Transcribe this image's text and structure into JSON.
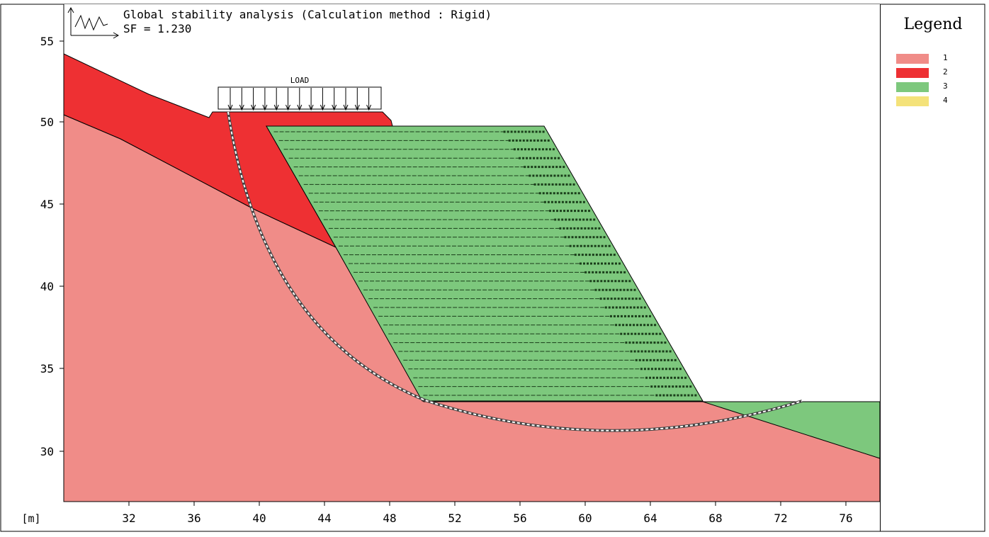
{
  "title": {
    "line1": "Global stability analysis (Calculation method : Rigid)",
    "line2": "SF = 1.230"
  },
  "load_label": "LOAD",
  "axis": {
    "unit_label": "[m]",
    "x_ticks": [
      "32",
      "36",
      "40",
      "44",
      "48",
      "52",
      "56",
      "60",
      "64",
      "68",
      "72",
      "76"
    ],
    "y_ticks": [
      "55",
      "50",
      "45",
      "40",
      "35",
      "30"
    ]
  },
  "legend": {
    "title": "Legend",
    "items": [
      {
        "label": "1",
        "color": "#f08c88"
      },
      {
        "label": "2",
        "color": "#ee3033"
      },
      {
        "label": "3",
        "color": "#7dc87d"
      },
      {
        "label": "4",
        "color": "#f4e27a"
      }
    ]
  },
  "colors": {
    "soil_1": "#f08c88",
    "soil_2": "#ee3033",
    "soil_3": "#7dc87d",
    "slip_surface": "#ffffff",
    "reinforcement": "#1a3d1a"
  },
  "icons": {
    "analysis_icon": "stability-analysis-icon"
  }
}
